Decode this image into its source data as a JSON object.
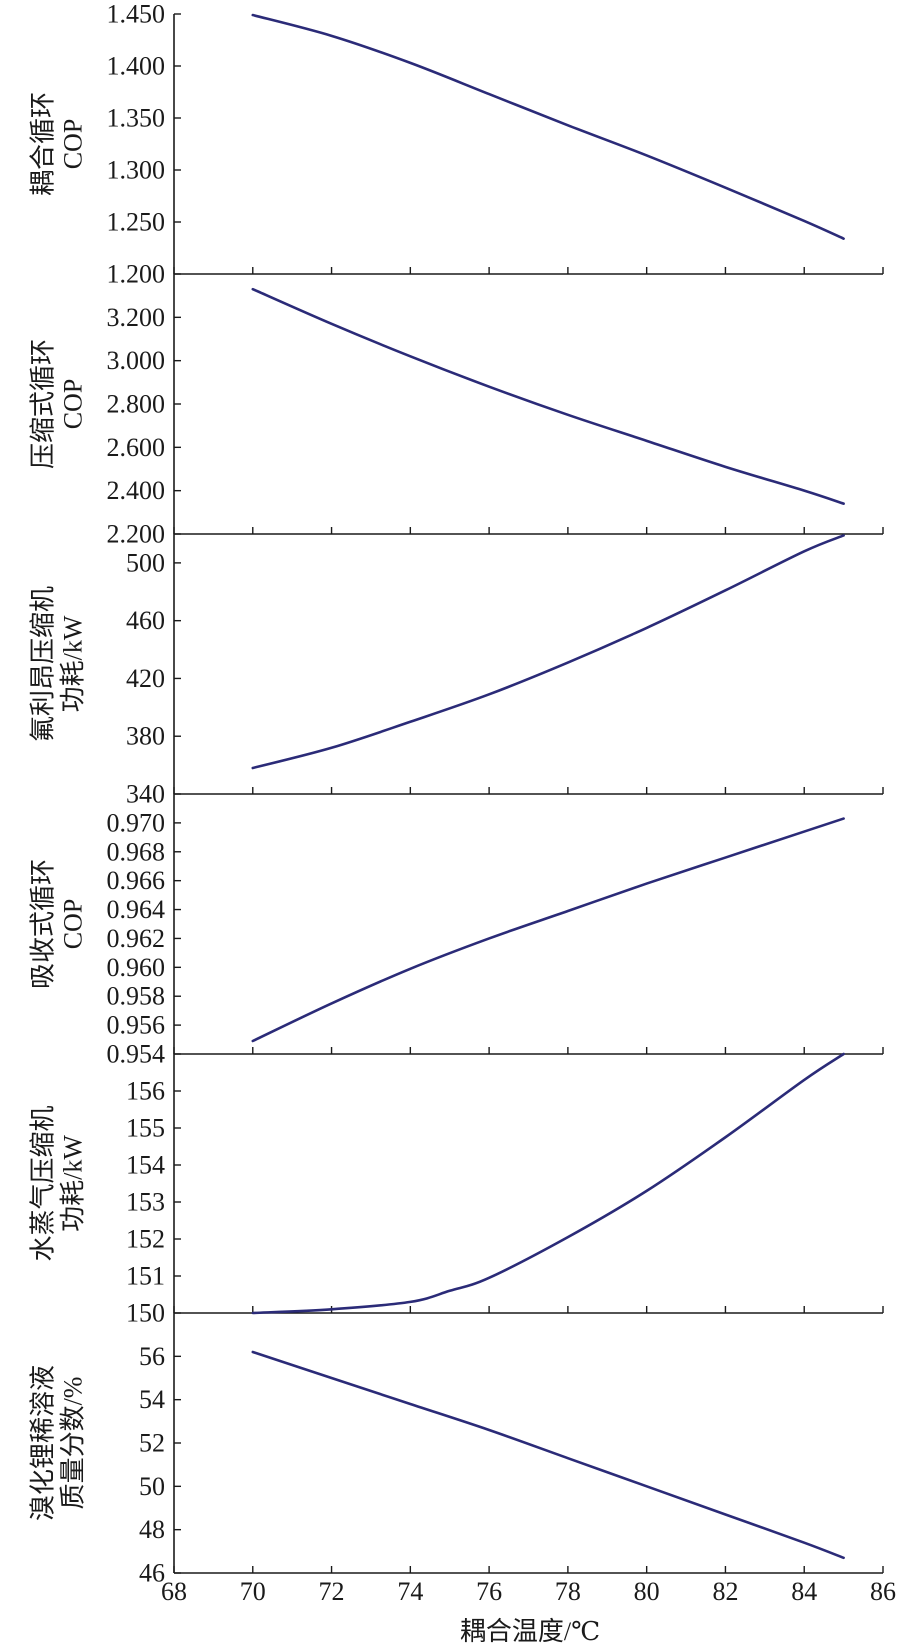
{
  "chart_data": {
    "type": "line",
    "xlabel": "耦合温度/℃",
    "xlim": [
      68,
      86
    ],
    "xticks": [
      68,
      70,
      72,
      74,
      76,
      78,
      80,
      82,
      84,
      86
    ],
    "series_color": "#2b2b78",
    "axis_color": "#1a1a1a",
    "panels": [
      {
        "ylabel": [
          "耦合循环",
          "COP"
        ],
        "ylim": [
          1.2,
          1.45
        ],
        "yticks": [
          "1.200",
          "1.250",
          "1.300",
          "1.350",
          "1.400",
          "1.450"
        ],
        "x": [
          70,
          72,
          74,
          76,
          78,
          80,
          82,
          84,
          85
        ],
        "y": [
          1.449,
          1.429,
          1.403,
          1.373,
          1.343,
          1.314,
          1.283,
          1.251,
          1.234
        ]
      },
      {
        "ylabel": [
          "压缩式循环",
          "COP"
        ],
        "ylim": [
          2.2,
          3.4
        ],
        "yticks": [
          "2.200",
          "2.400",
          "2.600",
          "2.800",
          "3.000",
          "3.200"
        ],
        "x": [
          70,
          72,
          74,
          76,
          78,
          80,
          82,
          84,
          85
        ],
        "y": [
          3.33,
          3.17,
          3.02,
          2.88,
          2.75,
          2.63,
          2.51,
          2.4,
          2.34
        ]
      },
      {
        "ylabel": [
          "氟利昂压缩机",
          "功耗/kW"
        ],
        "ylim": [
          340,
          520
        ],
        "yticks": [
          "340",
          "380",
          "420",
          "460",
          "500"
        ],
        "x": [
          70,
          72,
          74,
          76,
          78,
          80,
          82,
          84,
          85
        ],
        "y": [
          358,
          372,
          390,
          409,
          431,
          455,
          481,
          508,
          519
        ]
      },
      {
        "ylabel": [
          "吸收式循环",
          "COP"
        ],
        "ylim": [
          0.954,
          0.972
        ],
        "yticks": [
          "0.954",
          "0.956",
          "0.958",
          "0.960",
          "0.962",
          "0.964",
          "0.966",
          "0.968",
          "0.970"
        ],
        "x": [
          70,
          72,
          74,
          76,
          78,
          80,
          82,
          84,
          85
        ],
        "y": [
          0.9549,
          0.9575,
          0.9599,
          0.962,
          0.9639,
          0.9658,
          0.9676,
          0.9694,
          0.9703
        ]
      },
      {
        "ylabel": [
          "水蒸气压缩机",
          "功耗/kW"
        ],
        "ylim": [
          150,
          157
        ],
        "yticks": [
          "150",
          "151",
          "152",
          "153",
          "154",
          "155",
          "156"
        ],
        "x": [
          70,
          72,
          74,
          75,
          76,
          78,
          80,
          82,
          84,
          85
        ],
        "y": [
          150.0,
          150.1,
          150.3,
          150.6,
          150.95,
          152.05,
          153.3,
          154.75,
          156.3,
          157.0
        ]
      },
      {
        "ylabel": [
          "溴化锂稀溶液",
          "质量分数/%"
        ],
        "ylim": [
          46,
          58
        ],
        "yticks": [
          "46",
          "48",
          "50",
          "52",
          "54",
          "56"
        ],
        "x": [
          70,
          72,
          74,
          76,
          78,
          80,
          82,
          84,
          85
        ],
        "y": [
          56.2,
          55.0,
          53.8,
          52.6,
          51.3,
          50.0,
          48.7,
          47.4,
          46.7
        ]
      }
    ]
  }
}
